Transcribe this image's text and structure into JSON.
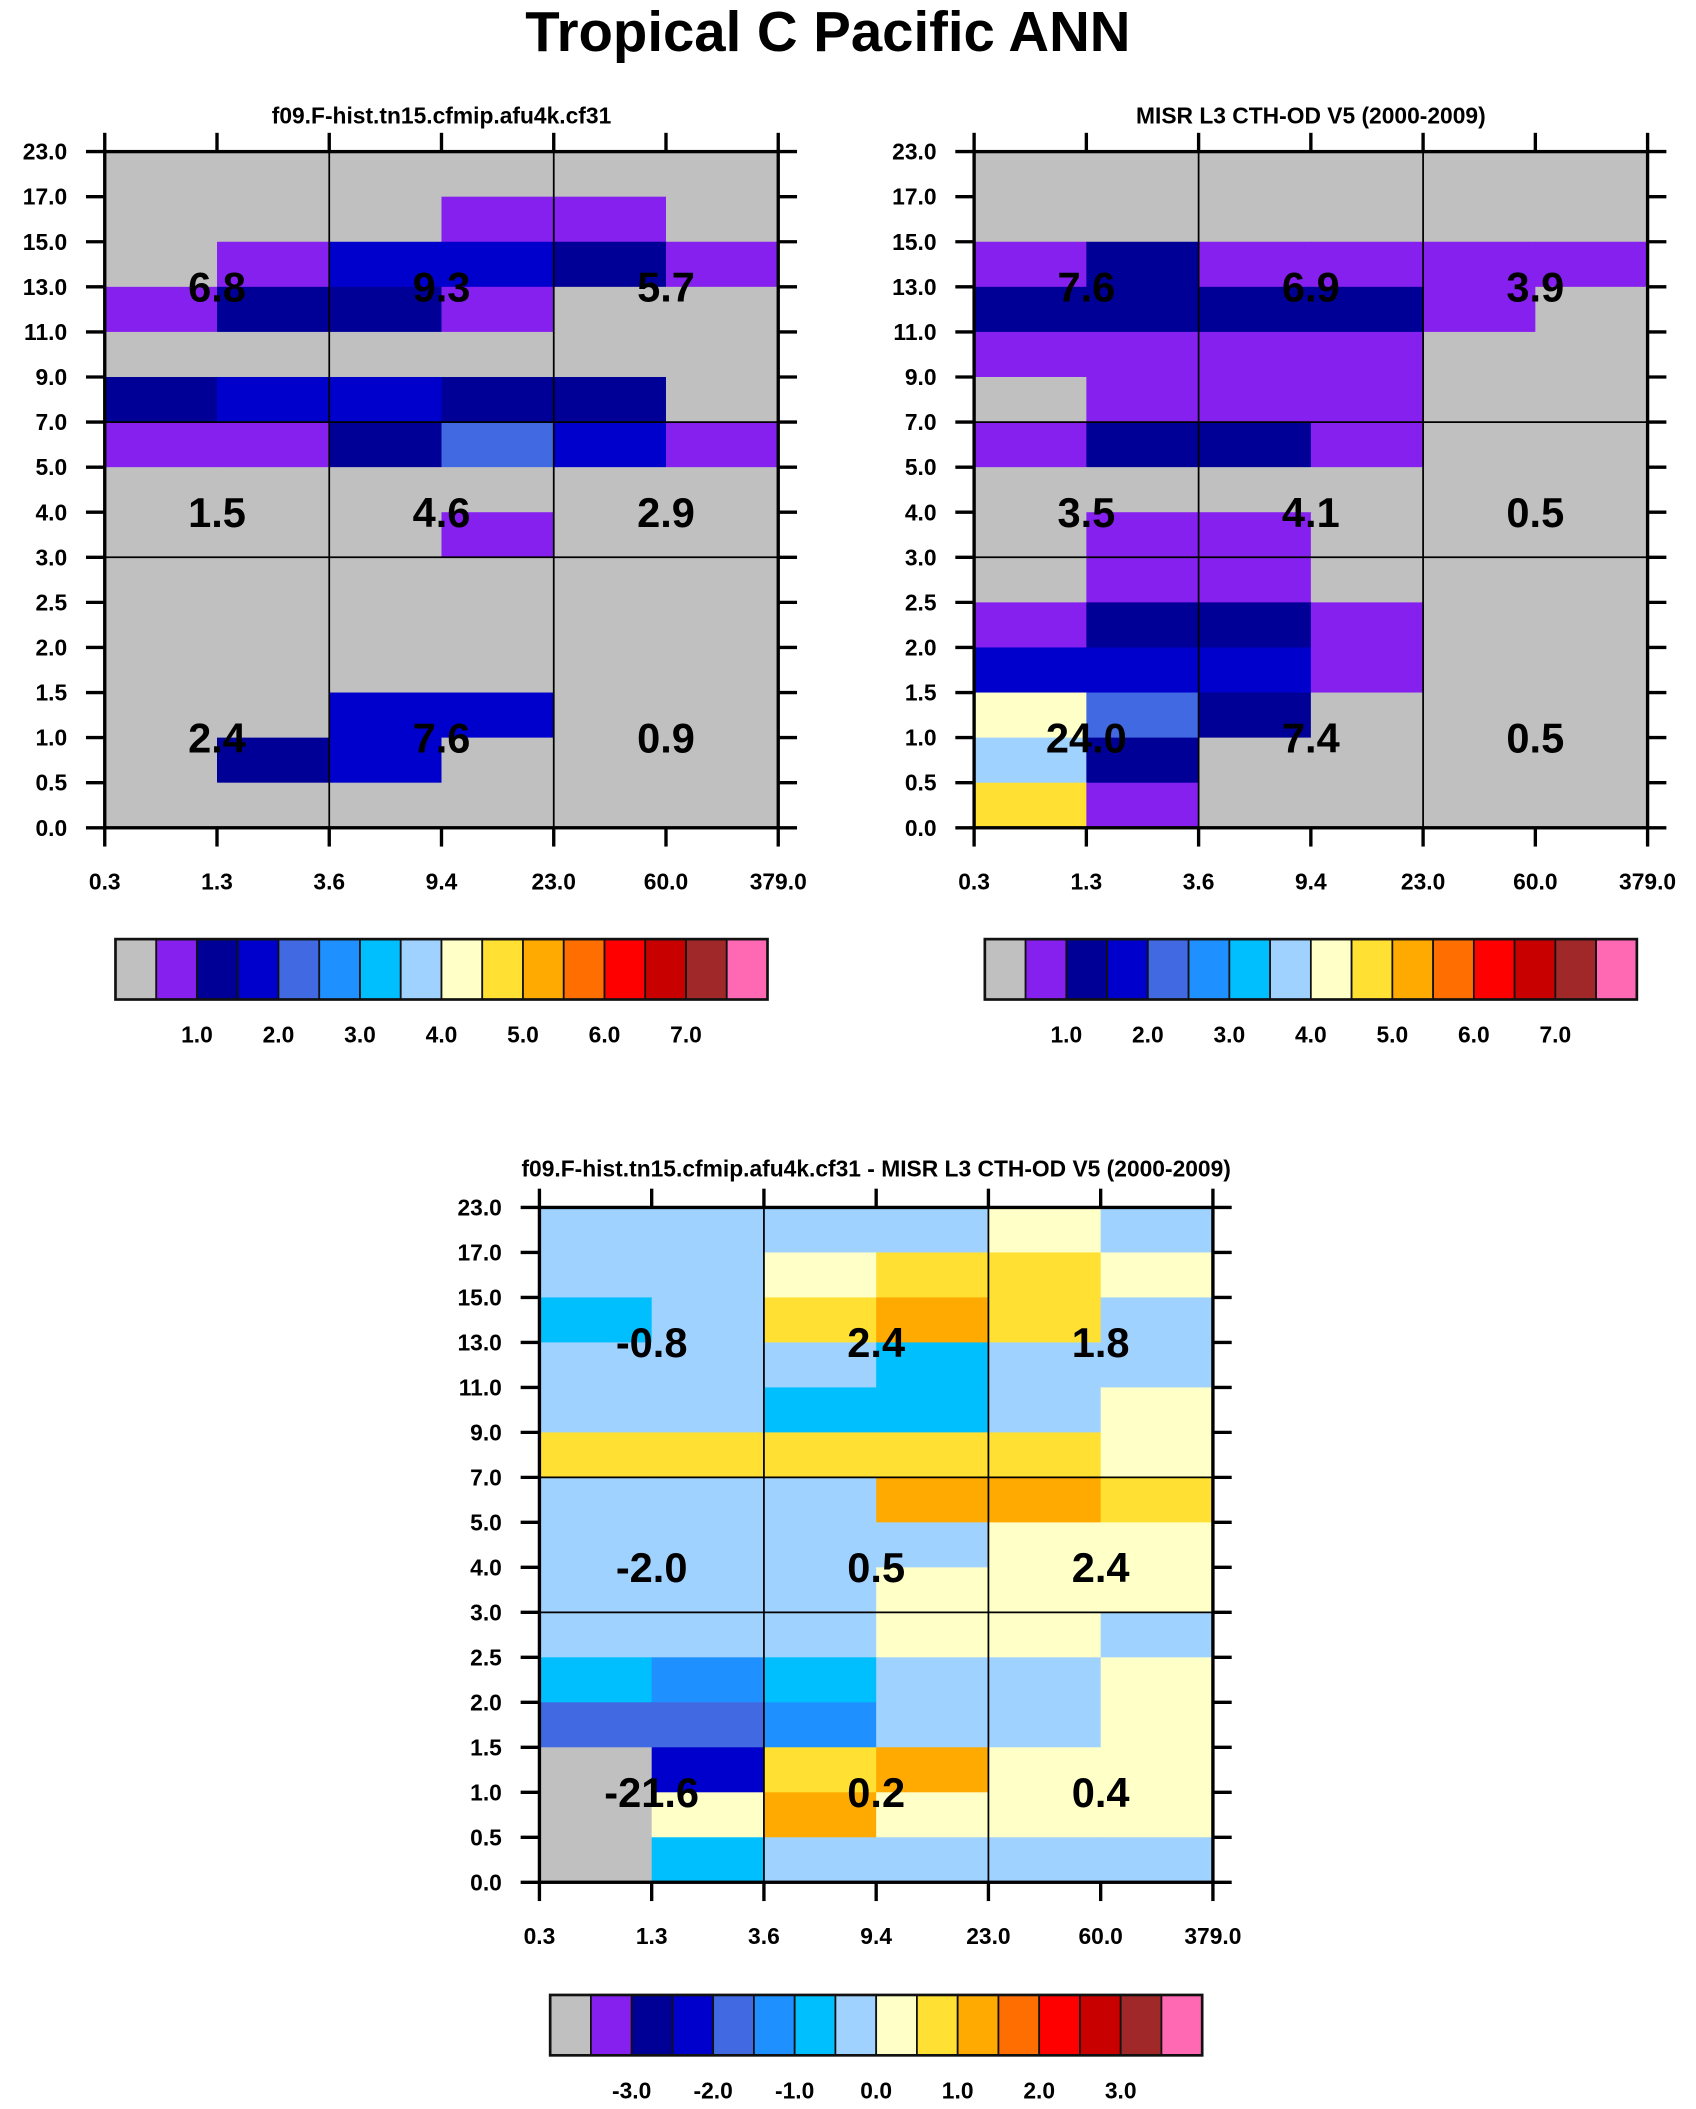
{
  "title": "Tropical C Pacific ANN",
  "palette": [
    "#c0c0c0",
    "#8520ee",
    "#000096",
    "#0000cc",
    "#4169e1",
    "#1e90ff",
    "#00bfff",
    "#a0d2ff",
    "#ffffc8",
    "#ffe033",
    "#ffaa00",
    "#ff6e00",
    "#ff0000",
    "#c80000",
    "#a02828",
    "#ff69b4"
  ],
  "chart_data": [
    {
      "type": "heatmap",
      "title": "f09.F-hist.tn15.cfmip.afu4k.cf31",
      "x_ticks": [
        "0.3",
        "1.3",
        "3.6",
        "9.4",
        "23.0",
        "60.0",
        "379.0"
      ],
      "y_ticks": [
        "0.0",
        "0.5",
        "1.0",
        "1.5",
        "2.0",
        "2.5",
        "3.0",
        "4.0",
        "5.0",
        "7.0",
        "9.0",
        "11.0",
        "13.0",
        "15.0",
        "17.0",
        "23.0"
      ],
      "cell_color_bins_top_to_bottom": [
        [
          0,
          0,
          0,
          0,
          0,
          0
        ],
        [
          0,
          0,
          0,
          1,
          1,
          0
        ],
        [
          0,
          1,
          3,
          3,
          2,
          1
        ],
        [
          1,
          2,
          2,
          1,
          0,
          0
        ],
        [
          0,
          0,
          0,
          0,
          0,
          0
        ],
        [
          2,
          3,
          3,
          2,
          2,
          0
        ],
        [
          1,
          1,
          2,
          4,
          3,
          1
        ],
        [
          0,
          0,
          0,
          0,
          0,
          0
        ],
        [
          0,
          0,
          0,
          1,
          0,
          0
        ],
        [
          0,
          0,
          0,
          0,
          0,
          0
        ],
        [
          0,
          0,
          0,
          0,
          0,
          0
        ],
        [
          0,
          0,
          0,
          0,
          0,
          0
        ],
        [
          0,
          0,
          3,
          3,
          0,
          0
        ],
        [
          0,
          2,
          3,
          0,
          0,
          0
        ],
        [
          0,
          0,
          0,
          0,
          0,
          0
        ]
      ],
      "block_values_top_to_bottom": [
        [
          "6.8",
          "9.3",
          "5.7"
        ],
        [
          "1.5",
          "4.6",
          "2.9"
        ],
        [
          "2.4",
          "7.6",
          "0.9"
        ]
      ],
      "colorbar_labels": [
        "1.0",
        "2.0",
        "3.0",
        "4.0",
        "5.0",
        "6.0",
        "7.0"
      ]
    },
    {
      "type": "heatmap",
      "title": "MISR L3 CTH-OD V5 (2000-2009)",
      "x_ticks": [
        "0.3",
        "1.3",
        "3.6",
        "9.4",
        "23.0",
        "60.0",
        "379.0"
      ],
      "y_ticks": [
        "0.0",
        "0.5",
        "1.0",
        "1.5",
        "2.0",
        "2.5",
        "3.0",
        "4.0",
        "5.0",
        "7.0",
        "9.0",
        "11.0",
        "13.0",
        "15.0",
        "17.0",
        "23.0"
      ],
      "cell_color_bins_top_to_bottom": [
        [
          0,
          0,
          0,
          0,
          0,
          0
        ],
        [
          0,
          0,
          0,
          0,
          0,
          0
        ],
        [
          1,
          2,
          1,
          1,
          1,
          1
        ],
        [
          2,
          2,
          2,
          2,
          1,
          0
        ],
        [
          1,
          1,
          1,
          1,
          0,
          0
        ],
        [
          0,
          1,
          1,
          1,
          0,
          0
        ],
        [
          1,
          2,
          2,
          1,
          0,
          0
        ],
        [
          0,
          0,
          0,
          0,
          0,
          0
        ],
        [
          0,
          1,
          1,
          0,
          0,
          0
        ],
        [
          0,
          1,
          1,
          0,
          0,
          0
        ],
        [
          1,
          2,
          2,
          1,
          0,
          0
        ],
        [
          3,
          3,
          3,
          1,
          0,
          0
        ],
        [
          8,
          4,
          2,
          0,
          0,
          0
        ],
        [
          7,
          2,
          0,
          0,
          0,
          0
        ],
        [
          9,
          1,
          0,
          0,
          0,
          0
        ]
      ],
      "block_values_top_to_bottom": [
        [
          "7.6",
          "6.9",
          "3.9"
        ],
        [
          "3.5",
          "4.1",
          "0.5"
        ],
        [
          "24.0",
          "7.4",
          "0.5"
        ]
      ],
      "colorbar_labels": [
        "1.0",
        "2.0",
        "3.0",
        "4.0",
        "5.0",
        "6.0",
        "7.0"
      ]
    },
    {
      "type": "heatmap",
      "title": "f09.F-hist.tn15.cfmip.afu4k.cf31 - MISR L3 CTH-OD V5 (2000-2009)",
      "x_ticks": [
        "0.3",
        "1.3",
        "3.6",
        "9.4",
        "23.0",
        "60.0",
        "379.0"
      ],
      "y_ticks": [
        "0.0",
        "0.5",
        "1.0",
        "1.5",
        "2.0",
        "2.5",
        "3.0",
        "4.0",
        "5.0",
        "7.0",
        "9.0",
        "11.0",
        "13.0",
        "15.0",
        "17.0",
        "23.0"
      ],
      "cell_color_bins_top_to_bottom": [
        [
          7,
          7,
          7,
          7,
          8,
          7
        ],
        [
          7,
          7,
          8,
          9,
          9,
          8
        ],
        [
          6,
          7,
          9,
          10,
          9,
          7
        ],
        [
          7,
          7,
          7,
          6,
          7,
          7
        ],
        [
          7,
          7,
          6,
          6,
          7,
          8
        ],
        [
          9,
          9,
          9,
          9,
          9,
          8
        ],
        [
          7,
          7,
          7,
          10,
          10,
          9
        ],
        [
          7,
          7,
          7,
          7,
          8,
          8
        ],
        [
          7,
          7,
          7,
          8,
          8,
          8
        ],
        [
          7,
          7,
          7,
          8,
          8,
          7
        ],
        [
          6,
          5,
          6,
          7,
          7,
          8
        ],
        [
          4,
          4,
          5,
          7,
          7,
          8
        ],
        [
          0,
          3,
          9,
          10,
          8,
          8
        ],
        [
          0,
          8,
          10,
          8,
          8,
          8
        ],
        [
          0,
          6,
          7,
          7,
          7,
          7
        ]
      ],
      "block_values_top_to_bottom": [
        [
          "-0.8",
          "2.4",
          "1.8"
        ],
        [
          "-2.0",
          "0.5",
          "2.4"
        ],
        [
          "-21.6",
          "0.2",
          "0.4"
        ]
      ],
      "colorbar_labels": [
        "-3.0",
        "-2.0",
        "-1.0",
        "0.0",
        "1.0",
        "2.0",
        "3.0"
      ]
    }
  ]
}
